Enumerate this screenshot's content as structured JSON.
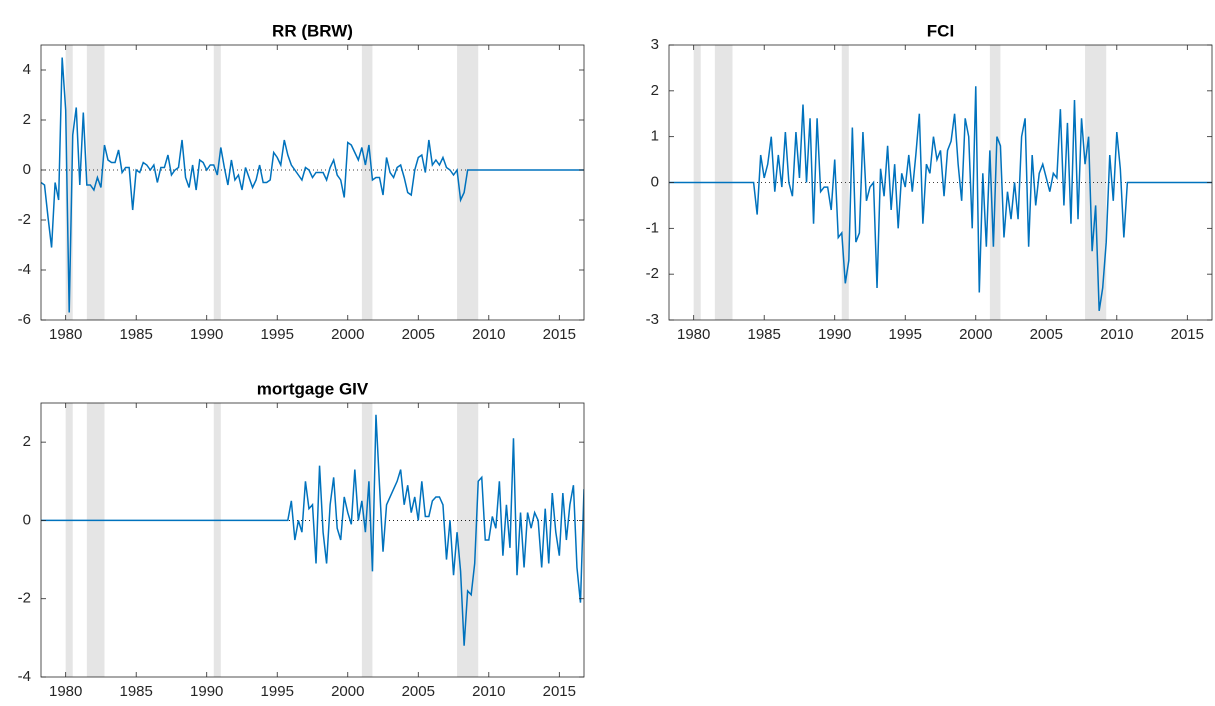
{
  "chart_data": [
    {
      "type": "line",
      "title": "RR (BRW)",
      "color": "#0072bd",
      "band_color": "#e5e5e5",
      "reference_line": 0,
      "xlim": [
        1978.25,
        2016.75
      ],
      "xticks": [
        1980,
        1985,
        1990,
        1995,
        2000,
        2005,
        2010,
        2015
      ],
      "ylim": [
        -6,
        5
      ],
      "yticks": [
        -6,
        -4,
        -2,
        0,
        2,
        4
      ],
      "shaded": [
        [
          1980,
          1980.5
        ],
        [
          1981.5,
          1982.75
        ],
        [
          1990.5,
          1991
        ],
        [
          2001,
          2001.75
        ],
        [
          2007.75,
          2009.25
        ]
      ],
      "x": [
        1978.25,
        1978.5,
        1978.75,
        1979,
        1979.25,
        1979.5,
        1979.75,
        1980,
        1980.25,
        1980.5,
        1980.75,
        1981,
        1981.25,
        1981.5,
        1981.75,
        1982,
        1982.25,
        1982.5,
        1982.75,
        1983,
        1983.25,
        1983.5,
        1983.75,
        1984,
        1984.25,
        1984.5,
        1984.75,
        1985,
        1985.25,
        1985.5,
        1985.75,
        1986,
        1986.25,
        1986.5,
        1986.75,
        1987,
        1987.25,
        1987.5,
        1987.75,
        1988,
        1988.25,
        1988.5,
        1988.75,
        1989,
        1989.25,
        1989.5,
        1989.75,
        1990,
        1990.25,
        1990.5,
        1990.75,
        1991,
        1991.25,
        1991.5,
        1991.75,
        1992,
        1992.25,
        1992.5,
        1992.75,
        1993,
        1993.25,
        1993.5,
        1993.75,
        1994,
        1994.25,
        1994.5,
        1994.75,
        1995,
        1995.25,
        1995.5,
        1995.75,
        1996,
        1996.25,
        1996.5,
        1996.75,
        1997,
        1997.25,
        1997.5,
        1997.75,
        1998,
        1998.25,
        1998.5,
        1998.75,
        1999,
        1999.25,
        1999.5,
        1999.75,
        2000,
        2000.25,
        2000.5,
        2000.75,
        2001,
        2001.25,
        2001.5,
        2001.75,
        2002,
        2002.25,
        2002.5,
        2002.75,
        2003,
        2003.25,
        2003.5,
        2003.75,
        2004,
        2004.25,
        2004.5,
        2004.75,
        2005,
        2005.25,
        2005.5,
        2005.75,
        2006,
        2006.25,
        2006.5,
        2006.75,
        2007,
        2007.25,
        2007.5,
        2007.75,
        2008,
        2008.25,
        2008.5,
        2008.75,
        2009,
        2009.25,
        2009.5,
        2009.75,
        2010,
        2010.25,
        2010.5,
        2010.75,
        2011,
        2011.25,
        2011.5,
        2011.75,
        2012,
        2012.25,
        2012.5,
        2012.75,
        2013,
        2013.25,
        2013.5,
        2013.75,
        2014,
        2014.25,
        2014.5,
        2014.75,
        2015,
        2015.25,
        2015.5,
        2015.75,
        2016,
        2016.25,
        2016.5,
        2016.75
      ],
      "values": [
        -0.5,
        -0.6,
        -1.9,
        -3.1,
        -0.5,
        -1.2,
        4.5,
        2.4,
        -5.7,
        1.4,
        2.5,
        -0.6,
        2.3,
        -0.6,
        -0.6,
        -0.8,
        -0.3,
        -0.7,
        1.0,
        0.4,
        0.3,
        0.3,
        0.8,
        -0.1,
        0.1,
        0.1,
        -1.6,
        0,
        -0.1,
        0.3,
        0.2,
        0,
        0.2,
        -0.5,
        0.1,
        0.1,
        0.6,
        -0.2,
        0,
        0.1,
        1.2,
        -0.3,
        -0.7,
        0.2,
        -0.8,
        0.4,
        0.3,
        0,
        0.2,
        0.2,
        -0.2,
        0.9,
        0.1,
        -0.6,
        0.4,
        -0.4,
        -0.2,
        -0.8,
        0.1,
        -0.3,
        -0.7,
        -0.4,
        0.2,
        -0.5,
        -0.5,
        -0.4,
        0.7,
        0.5,
        0.2,
        1.2,
        0.6,
        0.2,
        0,
        -0.2,
        -0.4,
        0.1,
        0,
        -0.3,
        -0.1,
        -0.1,
        -0.1,
        -0.4,
        0.1,
        0.4,
        -0.2,
        -0.4,
        -1.1,
        1.1,
        1.0,
        0.7,
        0.4,
        0.9,
        0.2,
        1.0,
        -0.4,
        -0.3,
        -0.3,
        -1.0,
        0.5,
        -0.1,
        -0.3,
        0.1,
        0.2,
        -0.3,
        -0.9,
        -1.0,
        0,
        0.5,
        0.6,
        -0.1,
        1.2,
        0.2,
        0.4,
        0.2,
        0.5,
        0.1,
        0,
        -0.2,
        0,
        -1.2,
        -0.9,
        0,
        0,
        0,
        0,
        0,
        0,
        0,
        0,
        0,
        0,
        0,
        0,
        0,
        0,
        0,
        0,
        0,
        0,
        0,
        0,
        0,
        0,
        0,
        0,
        0,
        0,
        0,
        0,
        0,
        0,
        0,
        0,
        0,
        0
      ]
    },
    {
      "type": "line",
      "title": "FCI",
      "color": "#0072bd",
      "band_color": "#e5e5e5",
      "reference_line": 0,
      "xlim": [
        1978.25,
        2016.75
      ],
      "xticks": [
        1980,
        1985,
        1990,
        1995,
        2000,
        2005,
        2010,
        2015
      ],
      "ylim": [
        -3,
        3
      ],
      "yticks": [
        -3,
        -2,
        -1,
        0,
        1,
        2,
        3
      ],
      "shaded": [
        [
          1980,
          1980.5
        ],
        [
          1981.5,
          1982.75
        ],
        [
          1990.5,
          1991
        ],
        [
          2001,
          2001.75
        ],
        [
          2007.75,
          2009.25
        ]
      ],
      "x": [
        1978.25,
        1978.5,
        1978.75,
        1979,
        1979.25,
        1979.5,
        1979.75,
        1980,
        1980.25,
        1980.5,
        1980.75,
        1981,
        1981.25,
        1981.5,
        1981.75,
        1982,
        1982.25,
        1982.5,
        1982.75,
        1983,
        1983.25,
        1983.5,
        1983.75,
        1984,
        1984.25,
        1984.5,
        1984.75,
        1985,
        1985.25,
        1985.5,
        1985.75,
        1986,
        1986.25,
        1986.5,
        1986.75,
        1987,
        1987.25,
        1987.5,
        1987.75,
        1988,
        1988.25,
        1988.5,
        1988.75,
        1989,
        1989.25,
        1989.5,
        1989.75,
        1990,
        1990.25,
        1990.5,
        1990.75,
        1991,
        1991.25,
        1991.5,
        1991.75,
        1992,
        1992.25,
        1992.5,
        1992.75,
        1993,
        1993.25,
        1993.5,
        1993.75,
        1994,
        1994.25,
        1994.5,
        1994.75,
        1995,
        1995.25,
        1995.5,
        1995.75,
        1996,
        1996.25,
        1996.5,
        1996.75,
        1997,
        1997.25,
        1997.5,
        1997.75,
        1998,
        1998.25,
        1998.5,
        1998.75,
        1999,
        1999.25,
        1999.5,
        1999.75,
        2000,
        2000.25,
        2000.5,
        2000.75,
        2001,
        2001.25,
        2001.5,
        2001.75,
        2002,
        2002.25,
        2002.5,
        2002.75,
        2003,
        2003.25,
        2003.5,
        2003.75,
        2004,
        2004.25,
        2004.5,
        2004.75,
        2005,
        2005.25,
        2005.5,
        2005.75,
        2006,
        2006.25,
        2006.5,
        2006.75,
        2007,
        2007.25,
        2007.5,
        2007.75,
        2008,
        2008.25,
        2008.5,
        2008.75,
        2009,
        2009.25,
        2009.5,
        2009.75,
        2010,
        2010.25,
        2010.5,
        2010.75,
        2011,
        2011.25,
        2011.5,
        2011.75,
        2012,
        2012.25,
        2012.5,
        2012.75,
        2013,
        2013.25,
        2013.5,
        2013.75,
        2014,
        2014.25,
        2014.5,
        2014.75,
        2015,
        2015.25,
        2015.5,
        2015.75,
        2016,
        2016.25,
        2016.5,
        2016.75
      ],
      "values": [
        0,
        0,
        0,
        0,
        0,
        0,
        0,
        0,
        0,
        0,
        0,
        0,
        0,
        0,
        0,
        0,
        0,
        0,
        0,
        0,
        0,
        0,
        0,
        0,
        0,
        -0.7,
        0.6,
        0.1,
        0.4,
        1.0,
        -0.2,
        0.6,
        -0.1,
        1.1,
        0,
        -0.3,
        1.1,
        0.1,
        1.7,
        0,
        1.4,
        -0.9,
        1.4,
        -0.2,
        -0.1,
        -0.1,
        -0.6,
        0.5,
        -1.2,
        -1.1,
        -2.2,
        -1.7,
        1.2,
        -1.3,
        -1.1,
        1.1,
        -0.4,
        -0.1,
        0,
        -2.3,
        0.3,
        -0.3,
        0.8,
        -0.6,
        0.4,
        -1.0,
        0.2,
        -0.1,
        0.6,
        -0.2,
        0.6,
        1.5,
        -0.9,
        0.4,
        0.2,
        1.0,
        0.5,
        0.7,
        -0.3,
        0.7,
        0.9,
        1.5,
        0.4,
        -0.4,
        1.4,
        1.0,
        -1.0,
        2.1,
        -2.4,
        0.2,
        -1.4,
        0.7,
        -1.4,
        1.0,
        0.8,
        -1.2,
        -0.2,
        -0.8,
        0,
        -0.8,
        1.0,
        1.4,
        -1.4,
        0.6,
        -0.5,
        0.2,
        0.4,
        0.1,
        -0.2,
        0.2,
        0.1,
        1.6,
        -0.5,
        1.3,
        -0.9,
        1.8,
        -0.8,
        1.4,
        0.4,
        1.0,
        -1.5,
        -0.5,
        -2.8,
        -2.3,
        -1.3,
        0.6,
        -0.4,
        1.1,
        0.3,
        -1.2,
        0,
        0,
        0,
        0,
        0,
        0,
        0,
        0,
        0,
        0,
        0,
        0,
        0,
        0,
        0,
        0,
        0,
        0,
        0,
        0,
        0,
        0,
        0,
        0,
        0
      ]
    },
    {
      "type": "line",
      "title": "mortgage GIV",
      "color": "#0072bd",
      "band_color": "#e5e5e5",
      "reference_line": 0,
      "xlim": [
        1978.25,
        2016.75
      ],
      "xticks": [
        1980,
        1985,
        1990,
        1995,
        2000,
        2005,
        2010,
        2015
      ],
      "ylim": [
        -4,
        3
      ],
      "yticks": [
        -4,
        -2,
        0,
        2
      ],
      "shaded": [
        [
          1980,
          1980.5
        ],
        [
          1981.5,
          1982.75
        ],
        [
          1990.5,
          1991
        ],
        [
          2001,
          2001.75
        ],
        [
          2007.75,
          2009.25
        ]
      ],
      "x": [
        1978.25,
        1978.5,
        1978.75,
        1979,
        1979.25,
        1979.5,
        1979.75,
        1980,
        1980.25,
        1980.5,
        1980.75,
        1981,
        1981.25,
        1981.5,
        1981.75,
        1982,
        1982.25,
        1982.5,
        1982.75,
        1983,
        1983.25,
        1983.5,
        1983.75,
        1984,
        1984.25,
        1984.5,
        1984.75,
        1985,
        1985.25,
        1985.5,
        1985.75,
        1986,
        1986.25,
        1986.5,
        1986.75,
        1987,
        1987.25,
        1987.5,
        1987.75,
        1988,
        1988.25,
        1988.5,
        1988.75,
        1989,
        1989.25,
        1989.5,
        1989.75,
        1990,
        1990.25,
        1990.5,
        1990.75,
        1991,
        1991.25,
        1991.5,
        1991.75,
        1992,
        1992.25,
        1992.5,
        1992.75,
        1993,
        1993.25,
        1993.5,
        1993.75,
        1994,
        1994.25,
        1994.5,
        1994.75,
        1995,
        1995.25,
        1995.5,
        1995.75,
        1996,
        1996.25,
        1996.5,
        1996.75,
        1997,
        1997.25,
        1997.5,
        1997.75,
        1998,
        1998.25,
        1998.5,
        1998.75,
        1999,
        1999.25,
        1999.5,
        1999.75,
        2000,
        2000.25,
        2000.5,
        2000.75,
        2001,
        2001.25,
        2001.5,
        2001.75,
        2002,
        2002.25,
        2002.5,
        2002.75,
        2003,
        2003.25,
        2003.5,
        2003.75,
        2004,
        2004.25,
        2004.5,
        2004.75,
        2005,
        2005.25,
        2005.5,
        2005.75,
        2006,
        2006.25,
        2006.5,
        2006.75,
        2007,
        2007.25,
        2007.5,
        2007.75,
        2008,
        2008.25,
        2008.5,
        2008.75,
        2009,
        2009.25,
        2009.5,
        2009.75,
        2010,
        2010.25,
        2010.5,
        2010.75,
        2011,
        2011.25,
        2011.5,
        2011.75,
        2012,
        2012.25,
        2012.5,
        2012.75,
        2013,
        2013.25,
        2013.5,
        2013.75,
        2014,
        2014.25,
        2014.5,
        2014.75,
        2015,
        2015.25,
        2015.5,
        2015.75,
        2016,
        2016.25,
        2016.5,
        2016.75
      ],
      "values": [
        0,
        0,
        0,
        0,
        0,
        0,
        0,
        0,
        0,
        0,
        0,
        0,
        0,
        0,
        0,
        0,
        0,
        0,
        0,
        0,
        0,
        0,
        0,
        0,
        0,
        0,
        0,
        0,
        0,
        0,
        0,
        0,
        0,
        0,
        0,
        0,
        0,
        0,
        0,
        0,
        0,
        0,
        0,
        0,
        0,
        0,
        0,
        0,
        0,
        0,
        0,
        0,
        0,
        0,
        0,
        0,
        0,
        0,
        0,
        0,
        0,
        0,
        0,
        0,
        0,
        0,
        0,
        0,
        0,
        0,
        0,
        0.5,
        -0.5,
        0,
        -0.3,
        1.0,
        0.3,
        0.4,
        -1.1,
        1.4,
        -0.3,
        -1.1,
        0.4,
        1.1,
        -0.2,
        -0.5,
        0.6,
        0.2,
        -0.1,
        1.3,
        0,
        0.5,
        -0.3,
        1.0,
        -1.3,
        2.7,
        0.9,
        -0.8,
        0.4,
        0.6,
        0.8,
        1.0,
        1.3,
        0.4,
        0.9,
        0.2,
        0.6,
        0,
        1.0,
        0.1,
        0.1,
        0.5,
        0.6,
        0.6,
        0.4,
        -1.0,
        0,
        -1.4,
        -0.3,
        -1.3,
        -3.2,
        -1.8,
        -1.9,
        -1.1,
        1.0,
        1.1,
        -0.5,
        -0.5,
        0.1,
        -0.2,
        1.0,
        -0.9,
        0.4,
        -0.7,
        2.1,
        -1.4,
        0.2,
        -1.2,
        0.2,
        -0.2,
        0.2,
        0,
        -1.2,
        0.3,
        -1.1,
        0.7,
        -0.3,
        -0.9,
        0.7,
        -0.5,
        0.4,
        0.9,
        -1.2,
        -2.1,
        0.8
      ]
    }
  ]
}
